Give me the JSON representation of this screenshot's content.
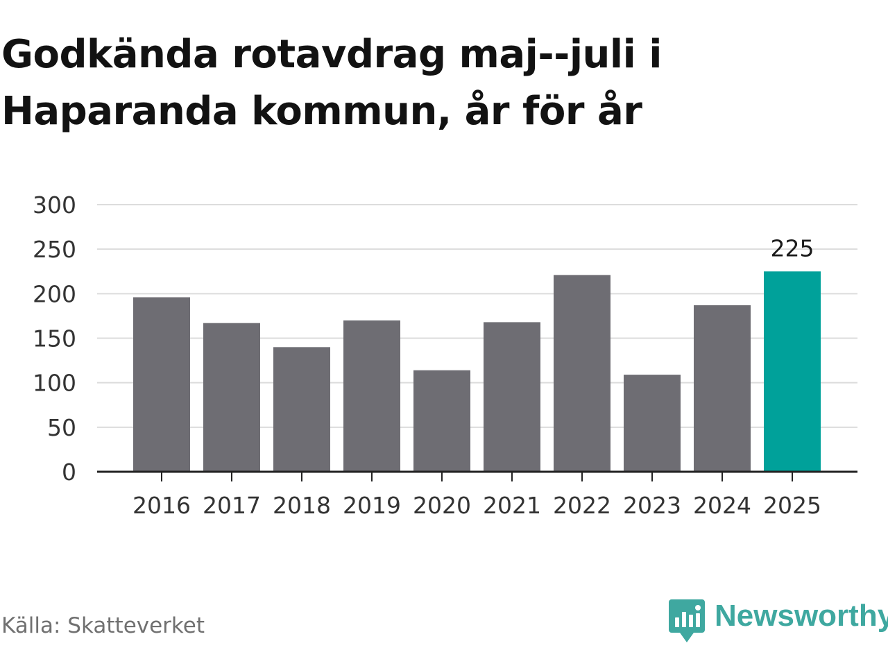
{
  "title": "Godkända rotavdrag maj--juli i Haparanda kommun, år för år",
  "source": "Källa: Skatteverket",
  "brand": {
    "name": "Newsworthy",
    "icon": "newsworthy-logo-icon",
    "color": "#3fa8a0"
  },
  "colors": {
    "bar": "#6e6d73",
    "highlight": "#00a19a",
    "grid": "#dcdcdc",
    "axis": "#222222",
    "text": "#333333"
  },
  "chart_data": {
    "type": "bar",
    "categories": [
      "2016",
      "2017",
      "2018",
      "2019",
      "2020",
      "2021",
      "2022",
      "2023",
      "2024",
      "2025"
    ],
    "values": [
      196,
      167,
      140,
      170,
      114,
      168,
      221,
      109,
      187,
      225
    ],
    "highlight_index": 9,
    "data_labels": [
      {
        "category": "2025",
        "text": "225"
      }
    ],
    "yticks": [
      "0",
      "50",
      "100",
      "150",
      "200",
      "250",
      "300"
    ],
    "ylim": [
      0,
      300
    ],
    "grid": true,
    "legend": "none"
  }
}
